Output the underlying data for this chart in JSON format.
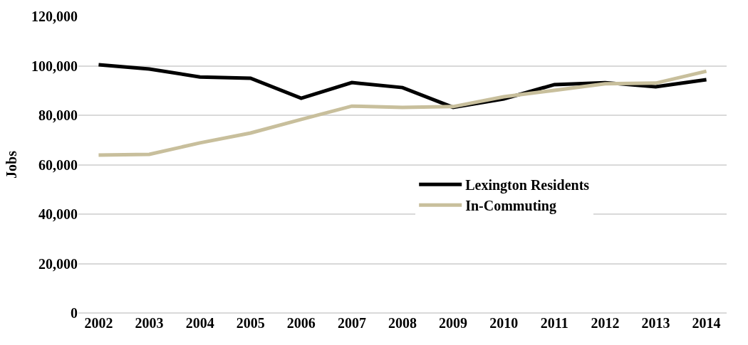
{
  "chart_data": {
    "type": "line",
    "ylabel": "Jobs",
    "categories": [
      "2002",
      "2003",
      "2004",
      "2005",
      "2006",
      "2007",
      "2008",
      "2009",
      "2010",
      "2011",
      "2012",
      "2013",
      "2014"
    ],
    "series": [
      {
        "name": "Lexington Residents",
        "color": "#000000",
        "values": [
          100400,
          98700,
          95500,
          95000,
          86900,
          93200,
          91200,
          83200,
          86600,
          92400,
          93200,
          91500,
          94400
        ]
      },
      {
        "name": "In-Commuting",
        "color": "#c8bf9c",
        "values": [
          63900,
          64200,
          68800,
          72800,
          78300,
          83700,
          83200,
          83500,
          87500,
          90100,
          92700,
          93000,
          97800
        ]
      }
    ],
    "ylim": [
      0,
      120000
    ],
    "yticks": [
      {
        "value": 0,
        "label": "0"
      },
      {
        "value": 20000,
        "label": "20,000"
      },
      {
        "value": 40000,
        "label": "40,000"
      },
      {
        "value": 60000,
        "label": "60,000"
      },
      {
        "value": 80000,
        "label": "80,000"
      },
      {
        "value": 100000,
        "label": "100,000"
      },
      {
        "value": 120000,
        "label": "120,000"
      }
    ],
    "grid": "y",
    "legend": "right",
    "marker": "none",
    "line_style": "solid"
  }
}
